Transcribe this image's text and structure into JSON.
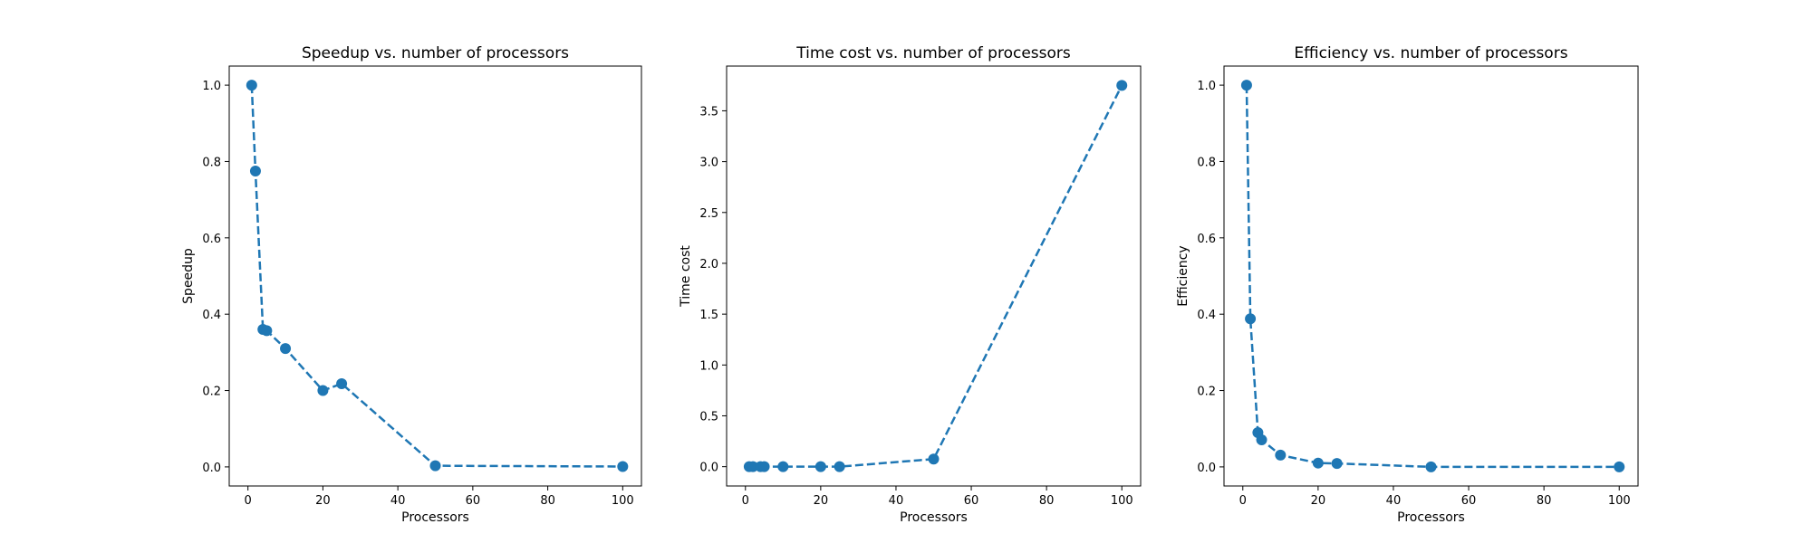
{
  "chart_data": [
    {
      "type": "line",
      "title": "Speedup vs. number of processors",
      "xlabel": "Processors",
      "ylabel": "Speedup",
      "xlim": [
        -5,
        105
      ],
      "ylim": [
        -0.05,
        1.05
      ],
      "xticks": [
        0,
        20,
        40,
        60,
        80,
        100
      ],
      "xtick_labels": [
        "0",
        "20",
        "40",
        "60",
        "80",
        "100"
      ],
      "yticks": [
        0.0,
        0.2,
        0.4,
        0.6,
        0.8,
        1.0
      ],
      "ytick_labels": [
        "0.0",
        "0.2",
        "0.4",
        "0.6",
        "0.8",
        "1.0"
      ],
      "grid": false,
      "series": [
        {
          "color": "#1f77b4",
          "line_style": "dashed",
          "marker": "circle",
          "x": [
            1,
            2,
            4,
            5,
            10,
            20,
            25,
            50,
            100
          ],
          "y": [
            1.0,
            0.775,
            0.36,
            0.357,
            0.31,
            0.2,
            0.218,
            0.003,
            0.001
          ]
        }
      ]
    },
    {
      "type": "line",
      "title": "Time cost vs. number of processors",
      "xlabel": "Processors",
      "ylabel": "Time cost",
      "xlim": [
        -5,
        105
      ],
      "ylim": [
        -0.19,
        3.94
      ],
      "xticks": [
        0,
        20,
        40,
        60,
        80,
        100
      ],
      "xtick_labels": [
        "0",
        "20",
        "40",
        "60",
        "80",
        "100"
      ],
      "yticks": [
        0.0,
        0.5,
        1.0,
        1.5,
        2.0,
        2.5,
        3.0,
        3.5
      ],
      "ytick_labels": [
        "0.0",
        "0.5",
        "1.0",
        "1.5",
        "2.0",
        "2.5",
        "3.0",
        "3.5"
      ],
      "grid": false,
      "series": [
        {
          "color": "#1f77b4",
          "line_style": "dashed",
          "marker": "circle",
          "x": [
            1,
            2,
            4,
            5,
            10,
            20,
            25,
            50,
            100
          ],
          "y": [
            0.0,
            0.0,
            0.0,
            0.0,
            0.0,
            0.0,
            0.0,
            0.075,
            3.75
          ]
        }
      ]
    },
    {
      "type": "line",
      "title": "Efficiency vs. number of processors",
      "xlabel": "Processors",
      "ylabel": "Efficiency",
      "xlim": [
        -5,
        105
      ],
      "ylim": [
        -0.05,
        1.05
      ],
      "xticks": [
        0,
        20,
        40,
        60,
        80,
        100
      ],
      "xtick_labels": [
        "0",
        "20",
        "40",
        "60",
        "80",
        "100"
      ],
      "yticks": [
        0.0,
        0.2,
        0.4,
        0.6,
        0.8,
        1.0
      ],
      "ytick_labels": [
        "0.0",
        "0.2",
        "0.4",
        "0.6",
        "0.8",
        "1.0"
      ],
      "grid": false,
      "series": [
        {
          "color": "#1f77b4",
          "line_style": "dashed",
          "marker": "circle",
          "x": [
            1,
            2,
            4,
            5,
            10,
            20,
            25,
            50,
            100
          ],
          "y": [
            1.0,
            0.388,
            0.09,
            0.071,
            0.031,
            0.01,
            0.009,
            0.0,
            0.0
          ]
        }
      ]
    }
  ]
}
